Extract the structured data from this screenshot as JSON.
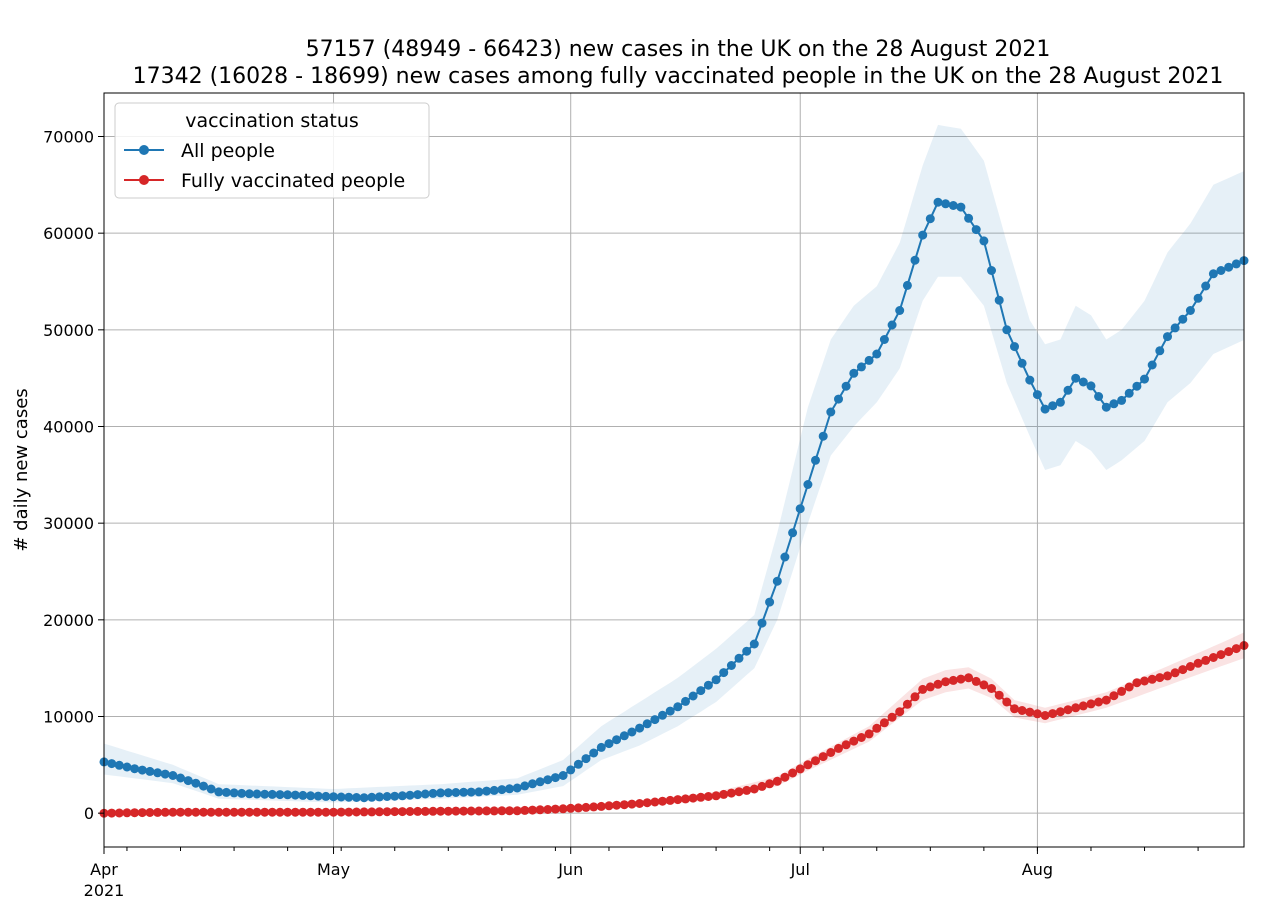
{
  "chart_data": {
    "type": "line",
    "title": [
      "57157 (48949 - 66423) new cases in the UK on the 28 August 2021",
      "17342 (16028 - 18699) new cases among fully vaccinated people in the UK on the 28 August 2021"
    ],
    "xlabel": "",
    "ylabel": "# daily new cases",
    "x_start": "2021-04-01",
    "x_end": "2021-08-28",
    "xlim": [
      "2021-04-01",
      "2021-08-28"
    ],
    "ylim": [
      -3500,
      74500
    ],
    "grid": true,
    "legend": {
      "title": "vaccination status",
      "placement": "top-left"
    },
    "x_ticks": [
      {
        "label": "Apr",
        "date": "2021-04-01"
      },
      {
        "label": "May",
        "date": "2021-05-01"
      },
      {
        "label": "Jun",
        "date": "2021-06-01"
      },
      {
        "label": "Jul",
        "date": "2021-07-01"
      },
      {
        "label": "Aug",
        "date": "2021-08-01"
      }
    ],
    "x_year_label": "2021",
    "y_ticks": [
      0,
      10000,
      20000,
      30000,
      40000,
      50000,
      60000,
      70000
    ],
    "series": [
      {
        "name": "All people",
        "color": "#1f77b4",
        "band_color": "#1f77b4",
        "points": [
          [
            "2021-04-01",
            5300
          ],
          [
            "2021-04-05",
            4600
          ],
          [
            "2021-04-10",
            3900
          ],
          [
            "2021-04-13",
            3100
          ],
          [
            "2021-04-16",
            2200
          ],
          [
            "2021-04-20",
            2000
          ],
          [
            "2021-04-25",
            1900
          ],
          [
            "2021-05-01",
            1700
          ],
          [
            "2021-05-05",
            1600
          ],
          [
            "2021-05-10",
            1800
          ],
          [
            "2021-05-15",
            2100
          ],
          [
            "2021-05-20",
            2200
          ],
          [
            "2021-05-25",
            2600
          ],
          [
            "2021-05-31",
            3900
          ],
          [
            "2021-06-05",
            6800
          ],
          [
            "2021-06-10",
            8800
          ],
          [
            "2021-06-15",
            11000
          ],
          [
            "2021-06-20",
            13800
          ],
          [
            "2021-06-25",
            17500
          ],
          [
            "2021-06-28",
            24000
          ],
          [
            "2021-07-02",
            34000
          ],
          [
            "2021-07-05",
            41500
          ],
          [
            "2021-07-08",
            45500
          ],
          [
            "2021-07-11",
            47500
          ],
          [
            "2021-07-14",
            52000
          ],
          [
            "2021-07-17",
            59800
          ],
          [
            "2021-07-19",
            63200
          ],
          [
            "2021-07-22",
            62700
          ],
          [
            "2021-07-25",
            59200
          ],
          [
            "2021-07-28",
            50000
          ],
          [
            "2021-07-31",
            44800
          ],
          [
            "2021-08-02",
            41800
          ],
          [
            "2021-08-04",
            42500
          ],
          [
            "2021-08-06",
            45000
          ],
          [
            "2021-08-08",
            44200
          ],
          [
            "2021-08-10",
            42000
          ],
          [
            "2021-08-12",
            42700
          ],
          [
            "2021-08-15",
            44900
          ],
          [
            "2021-08-18",
            49300
          ],
          [
            "2021-08-21",
            52000
          ],
          [
            "2021-08-24",
            55800
          ],
          [
            "2021-08-28",
            57157
          ]
        ],
        "band": [
          [
            "2021-04-01",
            4000,
            7200
          ],
          [
            "2021-04-10",
            3100,
            5000
          ],
          [
            "2021-04-16",
            1500,
            3000
          ],
          [
            "2021-05-01",
            1100,
            2500
          ],
          [
            "2021-05-15",
            1500,
            3000
          ],
          [
            "2021-05-25",
            1900,
            3600
          ],
          [
            "2021-05-31",
            2800,
            5500
          ],
          [
            "2021-06-05",
            5500,
            9000
          ],
          [
            "2021-06-10",
            7000,
            11500
          ],
          [
            "2021-06-15",
            9000,
            14000
          ],
          [
            "2021-06-20",
            11500,
            17000
          ],
          [
            "2021-06-25",
            15000,
            20500
          ],
          [
            "2021-06-28",
            20000,
            29000
          ],
          [
            "2021-07-02",
            30000,
            42000
          ],
          [
            "2021-07-05",
            37000,
            49000
          ],
          [
            "2021-07-08",
            40000,
            52500
          ],
          [
            "2021-07-11",
            42500,
            54500
          ],
          [
            "2021-07-14",
            46000,
            59000
          ],
          [
            "2021-07-17",
            53000,
            67000
          ],
          [
            "2021-07-19",
            55500,
            71200
          ],
          [
            "2021-07-22",
            55500,
            70800
          ],
          [
            "2021-07-25",
            52500,
            67500
          ],
          [
            "2021-07-28",
            44500,
            59000
          ],
          [
            "2021-07-31",
            39000,
            51000
          ],
          [
            "2021-08-02",
            35500,
            48500
          ],
          [
            "2021-08-04",
            36000,
            49000
          ],
          [
            "2021-08-06",
            38500,
            52500
          ],
          [
            "2021-08-08",
            37500,
            51500
          ],
          [
            "2021-08-10",
            35500,
            49000
          ],
          [
            "2021-08-12",
            36500,
            50000
          ],
          [
            "2021-08-15",
            38500,
            53000
          ],
          [
            "2021-08-18",
            42500,
            58000
          ],
          [
            "2021-08-21",
            44500,
            61000
          ],
          [
            "2021-08-24",
            47500,
            65000
          ],
          [
            "2021-08-28",
            48949,
            66423
          ]
        ]
      },
      {
        "name": "Fully vaccinated people",
        "color": "#d62728",
        "band_color": "#d62728",
        "points": [
          [
            "2021-04-01",
            0
          ],
          [
            "2021-04-10",
            100
          ],
          [
            "2021-04-20",
            100
          ],
          [
            "2021-05-01",
            100
          ],
          [
            "2021-05-15",
            200
          ],
          [
            "2021-05-25",
            250
          ],
          [
            "2021-05-31",
            450
          ],
          [
            "2021-06-05",
            700
          ],
          [
            "2021-06-10",
            1000
          ],
          [
            "2021-06-15",
            1400
          ],
          [
            "2021-06-20",
            1800
          ],
          [
            "2021-06-25",
            2500
          ],
          [
            "2021-06-28",
            3300
          ],
          [
            "2021-07-02",
            5000
          ],
          [
            "2021-07-06",
            6700
          ],
          [
            "2021-07-10",
            8200
          ],
          [
            "2021-07-14",
            10500
          ],
          [
            "2021-07-17",
            12800
          ],
          [
            "2021-07-20",
            13600
          ],
          [
            "2021-07-23",
            14000
          ],
          [
            "2021-07-26",
            12900
          ],
          [
            "2021-07-29",
            10800
          ],
          [
            "2021-08-02",
            10100
          ],
          [
            "2021-08-06",
            10900
          ],
          [
            "2021-08-10",
            11700
          ],
          [
            "2021-08-14",
            13500
          ],
          [
            "2021-08-18",
            14200
          ],
          [
            "2021-08-22",
            15500
          ],
          [
            "2021-08-25",
            16400
          ],
          [
            "2021-08-28",
            17342
          ]
        ],
        "band": [
          [
            "2021-04-01",
            -300,
            300
          ],
          [
            "2021-05-15",
            -100,
            500
          ],
          [
            "2021-05-31",
            200,
            700
          ],
          [
            "2021-06-10",
            700,
            1300
          ],
          [
            "2021-06-20",
            1400,
            2200
          ],
          [
            "2021-06-28",
            2800,
            3800
          ],
          [
            "2021-07-02",
            4400,
            5600
          ],
          [
            "2021-07-10",
            7400,
            9000
          ],
          [
            "2021-07-17",
            11700,
            13900
          ],
          [
            "2021-07-20",
            12500,
            14800
          ],
          [
            "2021-07-23",
            12900,
            15100
          ],
          [
            "2021-07-26",
            11900,
            13900
          ],
          [
            "2021-07-29",
            9900,
            11700
          ],
          [
            "2021-08-02",
            9300,
            10900
          ],
          [
            "2021-08-10",
            10900,
            12500
          ],
          [
            "2021-08-18",
            13200,
            15200
          ],
          [
            "2021-08-25",
            15200,
            17600
          ],
          [
            "2021-08-28",
            16028,
            18699
          ]
        ]
      }
    ]
  }
}
